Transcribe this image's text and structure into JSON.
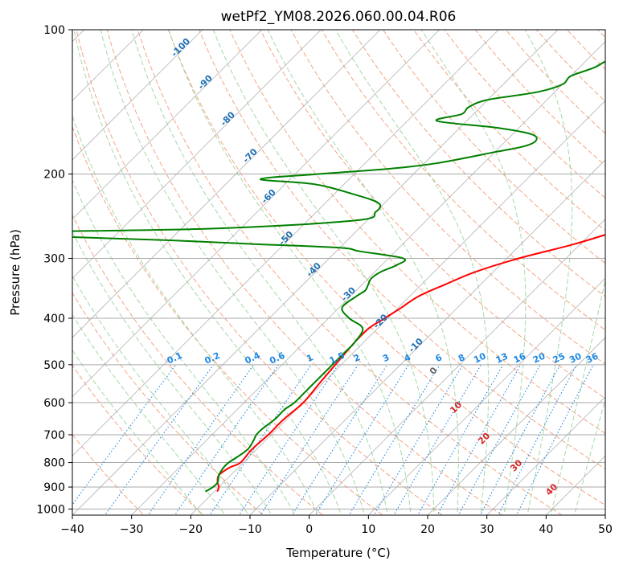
{
  "chart_data": {
    "type": "line",
    "title": "wetPf2_YM08.2026.060.00.04.R06",
    "xlabel": "Temperature (°C)",
    "ylabel": "Pressure (hPa)",
    "xlim": [
      -40,
      50
    ],
    "ylim": [
      1030,
      100
    ],
    "yscale": "log",
    "skew": 45,
    "grid": true,
    "x_ticks": [
      -40,
      -30,
      -20,
      -10,
      0,
      10,
      20,
      30,
      40,
      50
    ],
    "y_ticks": [
      100,
      200,
      300,
      400,
      500,
      600,
      700,
      800,
      900,
      1000
    ],
    "background_lines": {
      "dry_adiabats": "dashed light red",
      "moist_adiabats": "dashed light green",
      "mixing_ratio": "dotted blue",
      "isotherms": "solid gray"
    },
    "series": [
      {
        "color": "#ff0000",
        "pressure": [
          920,
          900,
          880,
          850,
          820,
          800,
          750,
          700,
          650,
          600,
          550,
          500,
          450,
          420,
          400,
          380,
          360,
          340,
          320,
          300,
          280,
          260,
          240,
          220,
          200,
          180,
          160,
          150,
          140,
          130,
          125,
          120,
          115,
          110,
          105,
          100
        ],
        "values": [
          -19.5,
          -20,
          -21,
          -22,
          -21.5,
          -20.5,
          -20.8,
          -20.5,
          -20.5,
          -20,
          -20.5,
          -21,
          -21.5,
          -21.5,
          -20.5,
          -19.5,
          -18.5,
          -16,
          -13,
          -8,
          -1,
          5,
          12,
          20,
          24,
          28,
          31,
          33,
          38,
          42,
          43,
          44,
          45,
          47,
          50,
          54
        ]
      },
      {
        "color": "#008000",
        "pressure": [
          920,
          900,
          880,
          850,
          820,
          800,
          780,
          750,
          720,
          700,
          680,
          650,
          620,
          600,
          570,
          550,
          520,
          500,
          470,
          450,
          420,
          400,
          380,
          360,
          350,
          340,
          330,
          320,
          310,
          300,
          290,
          285,
          280,
          275,
          270,
          265,
          260,
          250,
          240,
          230,
          220,
          210,
          205,
          200,
          195,
          190,
          180,
          175,
          170,
          165,
          160,
          155,
          150,
          145,
          140,
          135,
          130,
          125,
          120,
          115,
          110,
          105,
          102,
          100
        ],
        "values": [
          -21.5,
          -21,
          -21,
          -22,
          -22.5,
          -22.5,
          -22,
          -21.5,
          -22,
          -22.5,
          -22.5,
          -22,
          -22,
          -21.5,
          -21.5,
          -21.5,
          -21.5,
          -21.5,
          -21.5,
          -21.5,
          -22.5,
          -26.5,
          -29.5,
          -29,
          -28.5,
          -29,
          -29.5,
          -29,
          -27.5,
          -27.5,
          -36,
          -40,
          -55,
          -70,
          -90,
          -100,
          -65,
          -42,
          -40,
          -41,
          -47,
          -55,
          -65,
          -56,
          -45,
          -38,
          -30,
          -26,
          -25,
          -27,
          -34,
          -45,
          -42,
          -42,
          -40,
          -33,
          -30,
          -30,
          -27.5,
          -26,
          -21,
          -20,
          -20,
          -22
        ]
      }
    ],
    "dry_adiabat_labels": [
      "-100",
      "-90",
      "-80",
      "-70",
      "-60",
      "-50",
      "-40",
      "-30",
      "-20",
      "-10"
    ],
    "moist_adiabat_labels": [
      "0",
      "10",
      "20",
      "30",
      "40"
    ],
    "mixing_ratio_labels": [
      "0.1",
      "0.2",
      "0.4",
      "0.6",
      "1",
      "1.5",
      "2",
      "3",
      "4",
      "6",
      "8",
      "10",
      "13",
      "16",
      "20",
      "25",
      "30",
      "36"
    ],
    "colors": {
      "dry_adiabat": "#f4a582",
      "moist_adiabat": "#a6d8a6",
      "mixing_ratio": "#1e88e5",
      "isotherm": "#b3b3b3",
      "grid": "#aaaaaa"
    }
  }
}
